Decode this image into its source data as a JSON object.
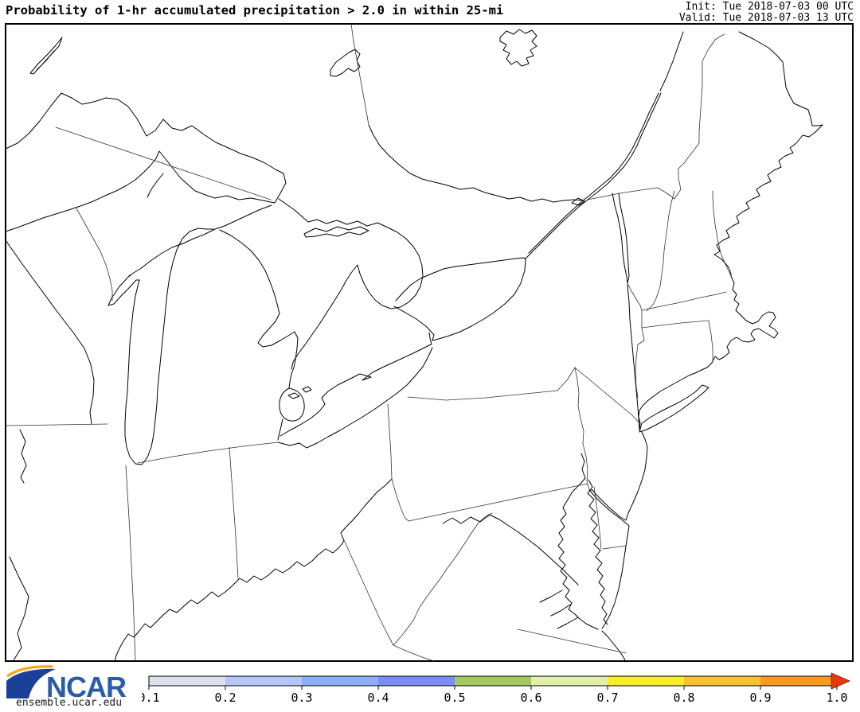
{
  "header": {
    "title": "Probability of 1-hr accumulated precipitation > 2.0 in within 25-mi",
    "init": "Init: Tue 2018-07-03 00 UTC",
    "valid": "Valid: Tue 2018-07-03 13 UTC"
  },
  "branding": {
    "org": "NCAR",
    "site": "ensemble.ucar.edu",
    "logo_blue": "#1b4097",
    "logo_gold": "#f9a91a",
    "text_blue": "#2a5caa"
  },
  "map": {
    "background": "#ffffff",
    "frame_color": "#000000",
    "coast_color": "#000000",
    "border_color": "#333333"
  },
  "colorbar": {
    "min": 0.1,
    "max": 1.0,
    "tick_labels": [
      "0.1",
      "0.2",
      "0.3",
      "0.4",
      "0.5",
      "0.6",
      "0.7",
      "0.8",
      "0.9",
      "1.0"
    ],
    "segment_colors": [
      "#dbe2ed",
      "#b5c7f8",
      "#8cb0f8",
      "#7b8ef5",
      "#a2c862",
      "#e1efa9",
      "#f8ee25",
      "#fcc22c",
      "#fa9b1f"
    ],
    "arrow_color": "#e8380d",
    "tick_color": "#000000",
    "outline_color": "#000000"
  }
}
